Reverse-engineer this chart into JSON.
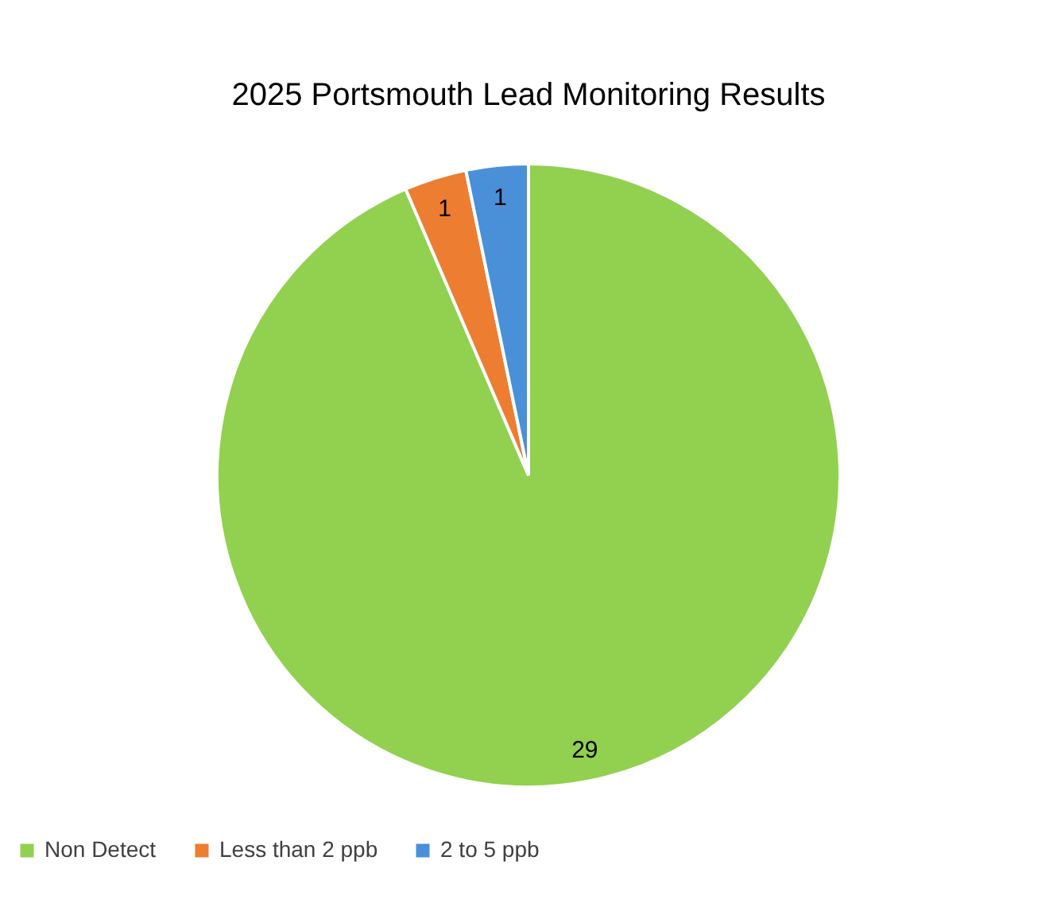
{
  "chart_data": {
    "type": "pie",
    "title": "2025 Portsmouth Lead Monitoring Results",
    "categories": [
      "Non Detect",
      "Less than 2 ppb",
      "2 to 5 ppb"
    ],
    "values": [
      29,
      1,
      1
    ],
    "colors": [
      "#92d050",
      "#ed7d31",
      "#4a90d9"
    ],
    "data_labels": true,
    "legend": "bottom"
  }
}
